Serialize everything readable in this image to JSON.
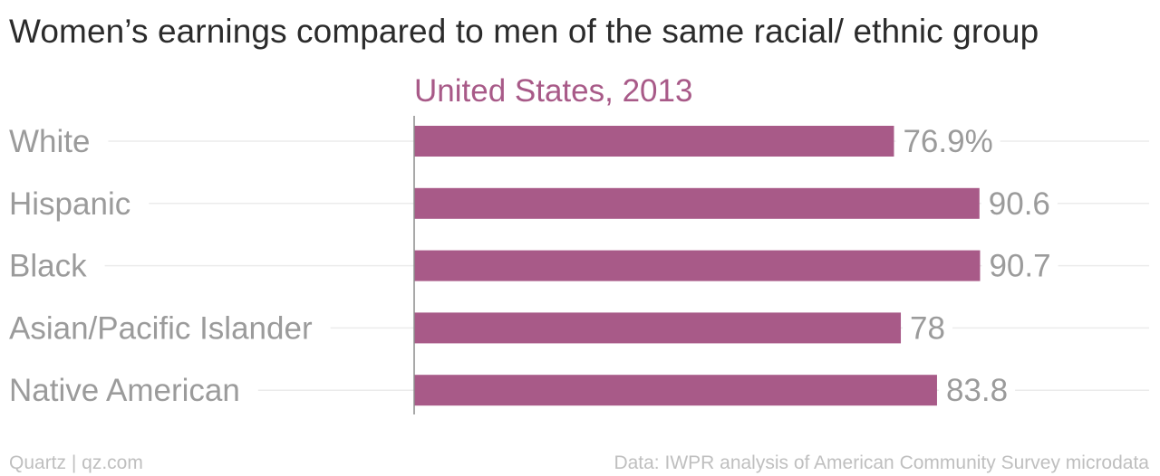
{
  "title": "Women’s earnings compared to men of the same racial/ ethnic group",
  "footer": {
    "source_left": "Quartz | qz.com",
    "source_right": "Data: IWPR analysis of American Community Survey microdata"
  },
  "colors": {
    "bar": "#a85a88",
    "series_label": "#a85a88",
    "category_text": "#9b9b9b",
    "value_text": "#9b9b9b",
    "guide_line": "#ebebeb",
    "axis_line": "#8c8c8c"
  },
  "chart_data": {
    "type": "bar",
    "orientation": "horizontal",
    "categories": [
      "White",
      "Hispanic",
      "Black",
      "Asian/Pacific Islander",
      "Native American"
    ],
    "series": [
      {
        "name": "United States, 2013",
        "values": [
          76.9,
          90.6,
          90.7,
          78,
          83.8
        ]
      }
    ],
    "value_labels": [
      "76.9%",
      "90.6",
      "90.7",
      "78",
      "83.8"
    ],
    "xlim": [
      0,
      100
    ],
    "grid": false,
    "legend": "top"
  }
}
